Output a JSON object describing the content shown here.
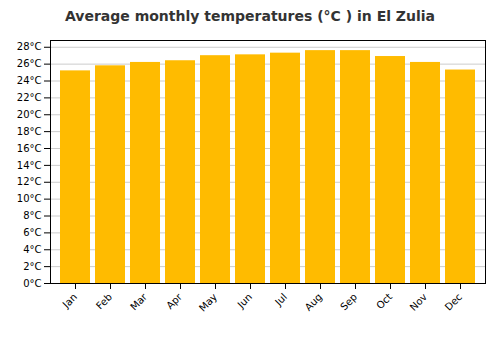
{
  "chart_data": {
    "type": "bar",
    "title": "Average monthly temperatures (°C ) in El Zulia",
    "categories": [
      "Jan",
      "Feb",
      "Mar",
      "Apr",
      "May",
      "Jun",
      "Jul",
      "Aug",
      "Sep",
      "Oct",
      "Nov",
      "Dec"
    ],
    "values": [
      25.2,
      25.8,
      26.2,
      26.4,
      27.0,
      27.1,
      27.3,
      27.6,
      27.6,
      26.9,
      26.2,
      25.3
    ],
    "color": "#FFBB00",
    "ylim": [
      0,
      28.8
    ],
    "yticks": [
      {
        "value": 0,
        "label": "0°C"
      },
      {
        "value": 2,
        "label": "2°C"
      },
      {
        "value": 4,
        "label": "4°C"
      },
      {
        "value": 6,
        "label": "6°C"
      },
      {
        "value": 8,
        "label": "8°C"
      },
      {
        "value": 10,
        "label": "10°C"
      },
      {
        "value": 12,
        "label": "12°C"
      },
      {
        "value": 14,
        "label": "14°C"
      },
      {
        "value": 16,
        "label": "16°C"
      },
      {
        "value": 18,
        "label": "18°C"
      },
      {
        "value": 20,
        "label": "20°C"
      },
      {
        "value": 22,
        "label": "22°C"
      },
      {
        "value": 24,
        "label": "24°C"
      },
      {
        "value": 26,
        "label": "26°C"
      },
      {
        "value": 28,
        "label": "28°C"
      }
    ],
    "grid": true
  }
}
